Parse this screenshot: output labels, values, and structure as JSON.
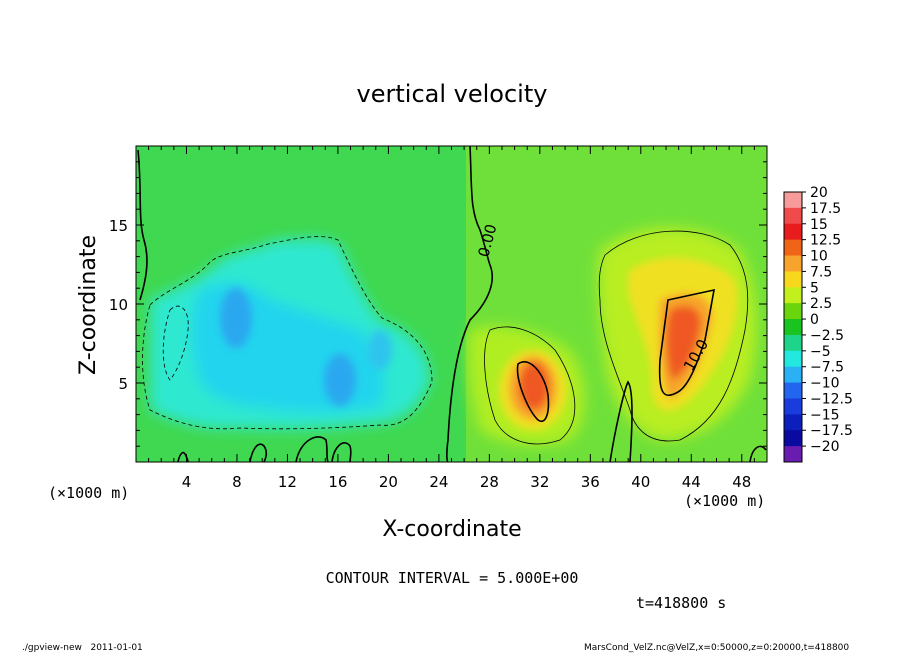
{
  "chart_data": {
    "type": "heatmap",
    "title": "vertical velocity",
    "xlabel": "X-coordinate",
    "ylabel": "Z-coordinate",
    "x_unit": "(×1000 m)",
    "y_unit": "(×1000 m)",
    "xlim": [
      0,
      50
    ],
    "ylim": [
      0,
      20
    ],
    "x_ticks": [
      "4",
      "8",
      "12",
      "16",
      "20",
      "24",
      "28",
      "32",
      "36",
      "40",
      "44",
      "48"
    ],
    "x_tick_values": [
      4,
      8,
      12,
      16,
      20,
      24,
      28,
      32,
      36,
      40,
      44,
      48
    ],
    "y_ticks": [
      "5",
      "10",
      "15"
    ],
    "y_tick_values": [
      5,
      10,
      15
    ],
    "colorbar": {
      "labels": [
        "20",
        "17.5",
        "15",
        "12.5",
        "10",
        "7.5",
        "5",
        "2.5",
        "0",
        "−2.5",
        "−5",
        "−7.5",
        "−10",
        "−12.5",
        "−15",
        "−17.5",
        "−20"
      ],
      "colors": [
        "#f79a9a",
        "#f04a4a",
        "#e81c1c",
        "#f06418",
        "#f7a42c",
        "#f7d81c",
        "#c3ef1c",
        "#6ad40c",
        "#19c420",
        "#1ed48a",
        "#22e8e0",
        "#2ab0f4",
        "#2266f0",
        "#1a3cdc",
        "#0c1fbd",
        "#0a0aa0",
        "#6a1cb0"
      ],
      "range": [
        -20,
        20
      ],
      "step": 2.5
    },
    "contour_interval": "CONTOUR INTERVAL = 5.000E+00",
    "contour_labels": [
      "0.00",
      "10.0"
    ],
    "features": [
      {
        "name": "updraft",
        "center_x": 31,
        "center_z": 6,
        "max_value": 15
      },
      {
        "name": "updraft",
        "center_x": 44,
        "center_z": 7.5,
        "max_value": 15
      },
      {
        "name": "downdraft",
        "center_x": 9,
        "center_z": 9,
        "min_value": -7.5
      },
      {
        "name": "downdraft",
        "center_x": 16,
        "center_z": 5.5,
        "min_value": -7.5
      }
    ]
  },
  "footer": {
    "time_label": "t=418800 s",
    "left_note": "./gpview-new   2011-01-01",
    "right_note": "MarsCond_VelZ.nc@VelZ,x=0:50000,z=0:20000,t=418800"
  }
}
